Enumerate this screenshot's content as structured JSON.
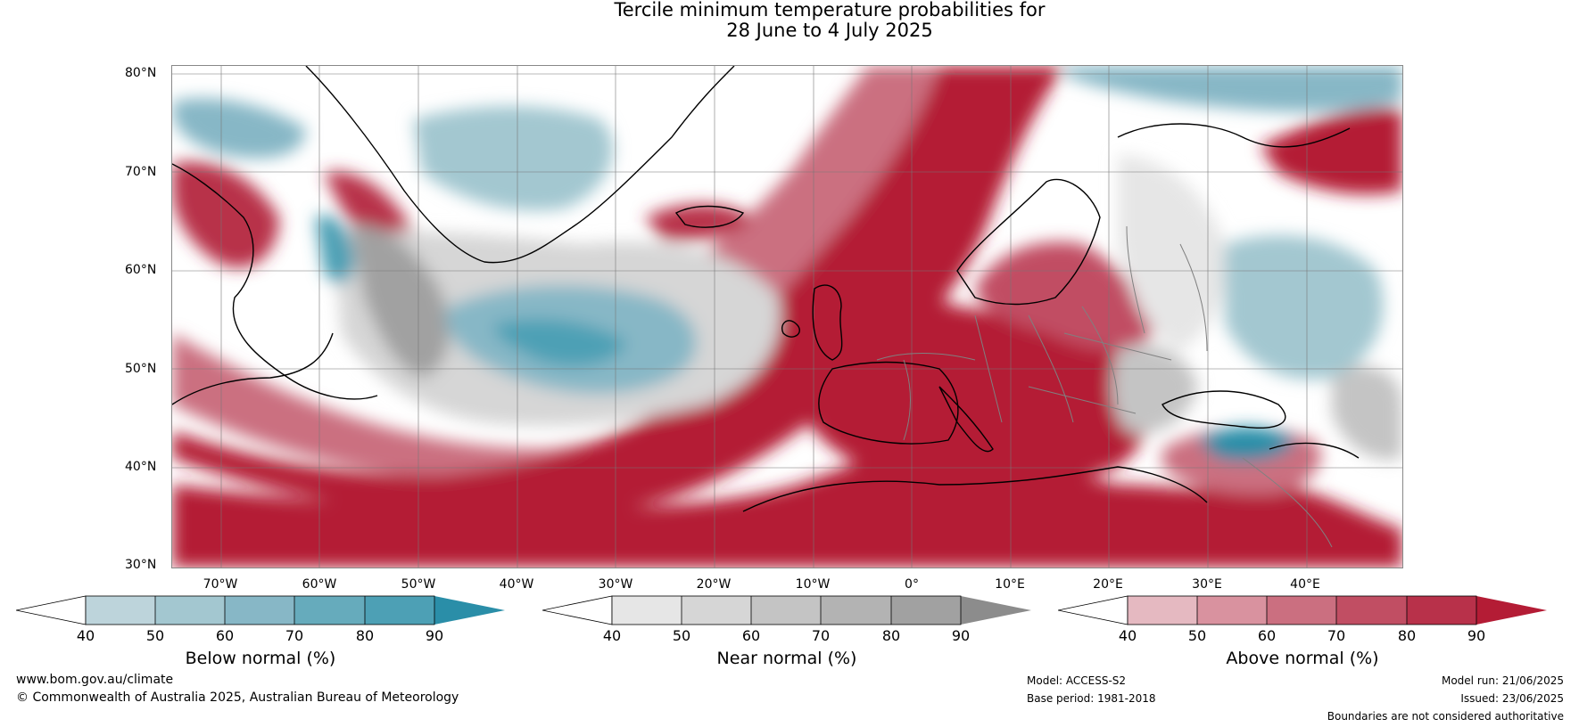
{
  "title": {
    "line1": "Tercile minimum temperature probabilities for",
    "line2": "28 June to 4 July 2025"
  },
  "map": {
    "lat_ticks": [
      "80°N",
      "70°N",
      "60°N",
      "50°N",
      "40°N",
      "30°N"
    ],
    "lon_ticks": [
      "70°W",
      "60°W",
      "50°W",
      "40°W",
      "30°W",
      "20°W",
      "10°W",
      "0°",
      "10°E",
      "20°E",
      "30°E",
      "40°E"
    ],
    "colors": {
      "above_max": "#b41c35",
      "below_max": "#2a8ea8",
      "near_max": "#8c8c8c",
      "land_outline": "#000000",
      "border": "#808080"
    }
  },
  "legends": [
    {
      "label": "Below normal (%)",
      "ticks": [
        "40",
        "50",
        "60",
        "70",
        "80",
        "90"
      ],
      "colors": [
        "#ffffff",
        "#bdd4db",
        "#a3c7d0",
        "#87b7c6",
        "#66abbc",
        "#4da0b5",
        "#2a8ea8"
      ]
    },
    {
      "label": "Near normal (%)",
      "ticks": [
        "40",
        "50",
        "60",
        "70",
        "80",
        "90"
      ],
      "colors": [
        "#ffffff",
        "#e6e6e6",
        "#d6d6d6",
        "#c4c4c4",
        "#b3b3b3",
        "#a1a1a1",
        "#8c8c8c"
      ]
    },
    {
      "label": "Above normal (%)",
      "ticks": [
        "40",
        "50",
        "60",
        "70",
        "80",
        "90"
      ],
      "colors": [
        "#ffffff",
        "#e5b9c1",
        "#d9929f",
        "#cb6f80",
        "#c14e63",
        "#b8314a",
        "#b41c35"
      ]
    }
  ],
  "footer": {
    "website": "www.bom.gov.au/climate",
    "copyright": "© Commonwealth of Australia 2025, Australian Bureau of Meteorology",
    "model": "Model: ACCESS-S2",
    "base_period": "Base period: 1981-2018",
    "model_run": "Model run: 21/06/2025",
    "issued": "Issued: 23/06/2025",
    "disclaimer": "Boundaries are not considered authoritative"
  }
}
